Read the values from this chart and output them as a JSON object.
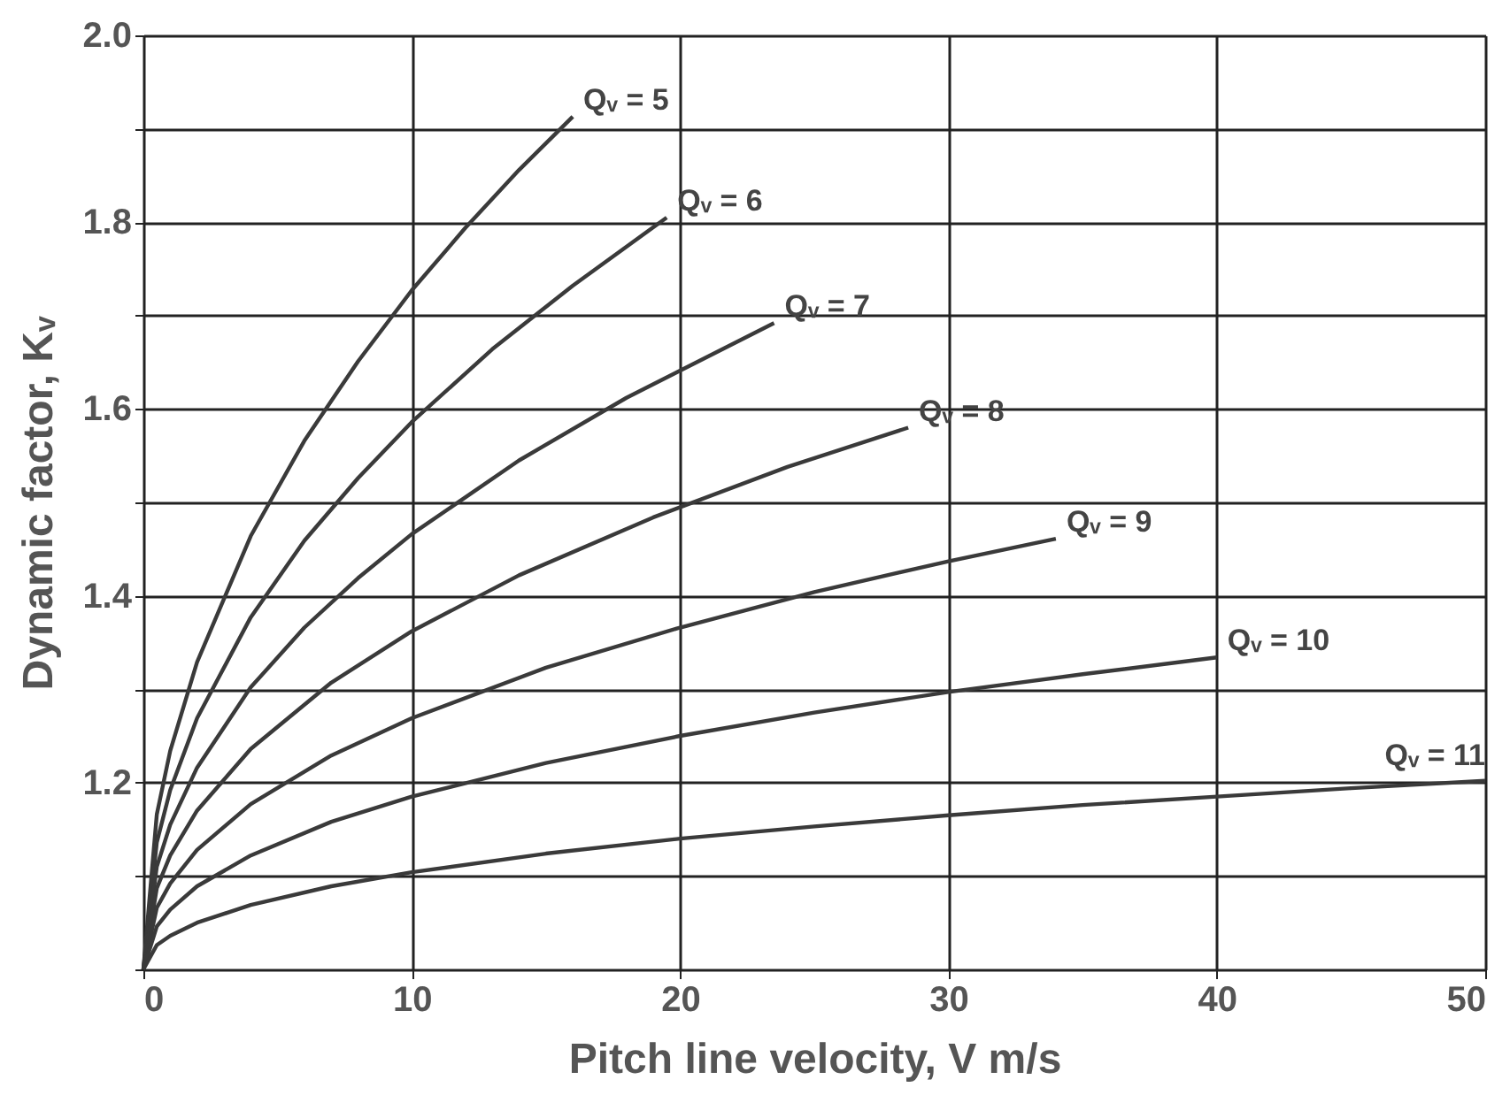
{
  "chart_data": {
    "type": "line",
    "xlabel": "Pitch line velocity, V  m/s",
    "ylabel": "Dynamic factor,  Kᵥ",
    "xlim": [
      0,
      50
    ],
    "xticks": [
      0,
      10,
      20,
      30,
      40,
      50
    ],
    "ylim": [
      1.0,
      2.0
    ],
    "yticks": [
      {
        "value": 1.0,
        "label": null
      },
      {
        "value": 1.1,
        "label": null
      },
      1.2,
      {
        "value": 1.3,
        "label": null
      },
      1.4,
      {
        "value": 1.5,
        "label": null
      },
      1.6,
      {
        "value": 1.7,
        "label": null
      },
      1.8,
      {
        "value": 1.9,
        "label": null
      },
      {
        "value": 2.0,
        "label": "2.0"
      }
    ],
    "grid": true,
    "marker": "none",
    "line_style": "solid",
    "series": [
      {
        "name": "Qᵥ = 5",
        "color": "#3a3a3a",
        "x": [
          0,
          0.5,
          1,
          2,
          4,
          6,
          8,
          10,
          12,
          14,
          16
        ],
        "values": [
          1.0,
          1.166,
          1.234,
          1.329,
          1.464,
          1.566,
          1.651,
          1.727,
          1.794,
          1.856,
          1.913
        ]
      },
      {
        "name": "Qᵥ = 6",
        "color": "#3a3a3a",
        "x": [
          0,
          0.5,
          1,
          2,
          4,
          6,
          8,
          10,
          13,
          16,
          19.5
        ],
        "values": [
          1.0,
          1.136,
          1.192,
          1.269,
          1.377,
          1.459,
          1.526,
          1.586,
          1.664,
          1.732,
          1.805
        ]
      },
      {
        "name": "Qᵥ = 7",
        "color": "#3a3a3a",
        "x": [
          0,
          0.5,
          1,
          2,
          4,
          6,
          8,
          10,
          14,
          18,
          23.5
        ],
        "values": [
          1.0,
          1.11,
          1.155,
          1.216,
          1.302,
          1.366,
          1.419,
          1.466,
          1.545,
          1.612,
          1.692
        ]
      },
      {
        "name": "Qᵥ = 8",
        "color": "#3a3a3a",
        "x": [
          0,
          0.5,
          1,
          2,
          4,
          7,
          10,
          14,
          19,
          24,
          28.5
        ],
        "values": [
          1.0,
          1.087,
          1.122,
          1.17,
          1.236,
          1.307,
          1.362,
          1.422,
          1.484,
          1.538,
          1.58
        ]
      },
      {
        "name": "Qᵥ = 9",
        "color": "#3a3a3a",
        "x": [
          0,
          0.5,
          1,
          2,
          4,
          7,
          10,
          15,
          20,
          25,
          30,
          34
        ],
        "values": [
          1.0,
          1.066,
          1.092,
          1.128,
          1.177,
          1.229,
          1.269,
          1.323,
          1.366,
          1.404,
          1.437,
          1.461
        ]
      },
      {
        "name": "Qᵥ = 10",
        "color": "#3a3a3a",
        "x": [
          0,
          0.5,
          1,
          2,
          4,
          7,
          10,
          15,
          20,
          25,
          30,
          35,
          40
        ],
        "values": [
          1.0,
          1.046,
          1.064,
          1.089,
          1.122,
          1.158,
          1.185,
          1.221,
          1.25,
          1.275,
          1.297,
          1.316,
          1.334
        ]
      },
      {
        "name": "Qᵥ = 11",
        "color": "#3a3a3a",
        "x": [
          0,
          0.5,
          1,
          2,
          4,
          7,
          10,
          15,
          20,
          25,
          30,
          35,
          40,
          45,
          50
        ],
        "values": [
          1.0,
          1.026,
          1.036,
          1.05,
          1.069,
          1.089,
          1.104,
          1.124,
          1.14,
          1.153,
          1.165,
          1.176,
          1.185,
          1.194,
          1.202
        ]
      }
    ]
  }
}
